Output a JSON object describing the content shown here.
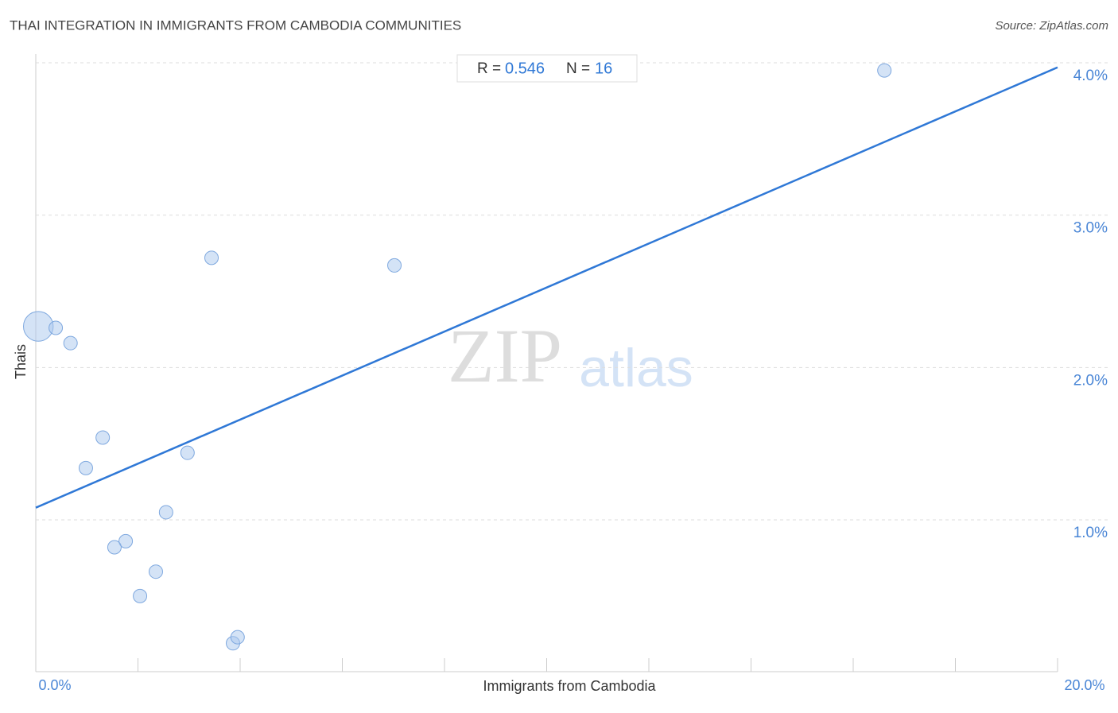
{
  "chart_data": {
    "type": "scatter",
    "title": "THAI INTEGRATION IN IMMIGRANTS FROM CAMBODIA COMMUNITIES",
    "source": "Source: ZipAtlas.com",
    "x_label": "Immigrants from Cambodia",
    "y_label": "Thais",
    "watermark": [
      "ZIP",
      "atlas"
    ],
    "stats": {
      "r_label": "R =",
      "r": 0.546,
      "n_label": "N =",
      "n": 16
    },
    "series": [
      {
        "name": "Thais",
        "color": "#a9c7ee",
        "x": [
          0.05,
          0.39,
          0.68,
          1.31,
          0.98,
          2.97,
          3.44,
          7.02,
          2.55,
          1.76,
          1.54,
          2.35,
          2.04,
          3.86,
          3.95,
          16.61
        ],
        "values": [
          2.27,
          2.26,
          2.16,
          1.54,
          1.34,
          1.44,
          2.72,
          2.67,
          1.05,
          0.86,
          0.82,
          0.66,
          0.5,
          0.19,
          0.23,
          3.95
        ],
        "sizes": [
          2.2,
          1,
          1,
          1,
          1,
          1,
          1,
          1,
          1,
          1,
          1,
          1,
          1,
          1,
          1,
          1
        ]
      }
    ],
    "trendline": {
      "color": "#2f78d6",
      "x": [
        0,
        20
      ],
      "y": [
        1.08,
        3.97
      ]
    },
    "xlim": [
      0,
      20
    ],
    "ylim": [
      0,
      4.1
    ],
    "xticks": [
      {
        "value": 0,
        "label": "0.0%"
      },
      {
        "value": 20,
        "label": "20.0%"
      }
    ],
    "xminor_ticks": [
      2,
      4,
      6,
      8,
      10,
      12,
      14,
      16,
      18
    ],
    "yticks": [
      {
        "value": 1,
        "label": "1.0%"
      },
      {
        "value": 2,
        "label": "2.0%"
      },
      {
        "value": 3,
        "label": "3.0%"
      },
      {
        "value": 4,
        "label": "4.0%"
      }
    ],
    "grid": true
  }
}
